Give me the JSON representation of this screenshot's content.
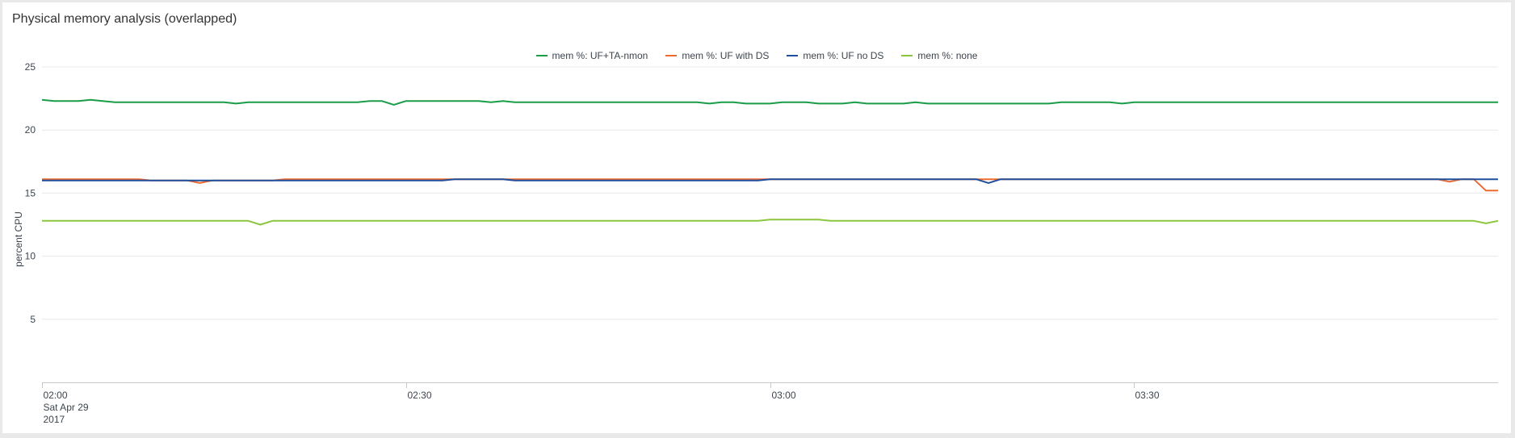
{
  "panel": {
    "title": "Physical memory analysis (overlapped)"
  },
  "legend": [
    {
      "label": "mem %: UF+TA-nmon",
      "color": "#1a9c48"
    },
    {
      "label": "mem %: UF with DS",
      "color": "#ec6a2f"
    },
    {
      "label": "mem %: UF no DS",
      "color": "#1f4e9c"
    },
    {
      "label": "mem %: none",
      "color": "#8cc63f"
    }
  ],
  "chart_data": {
    "type": "line",
    "title": "Physical memory analysis (overlapped)",
    "xlabel": "",
    "ylabel": "percent CPU",
    "ylim": [
      0,
      25
    ],
    "yticks": [
      "5",
      "10",
      "15",
      "20",
      "25"
    ],
    "xticks": [
      {
        "label": "02:00",
        "sublabel": [
          "Sat Apr 29",
          "2017"
        ]
      },
      {
        "label": "02:30",
        "sublabel": []
      },
      {
        "label": "03:00",
        "sublabel": []
      },
      {
        "label": "03:30",
        "sublabel": []
      }
    ],
    "x": [
      "02:00",
      "02:01",
      "02:02",
      "02:03",
      "02:04",
      "02:05",
      "02:06",
      "02:07",
      "02:08",
      "02:09",
      "02:10",
      "02:11",
      "02:12",
      "02:13",
      "02:14",
      "02:15",
      "02:16",
      "02:17",
      "02:18",
      "02:19",
      "02:20",
      "02:21",
      "02:22",
      "02:23",
      "02:24",
      "02:25",
      "02:26",
      "02:27",
      "02:28",
      "02:29",
      "02:30",
      "02:31",
      "02:32",
      "02:33",
      "02:34",
      "02:35",
      "02:36",
      "02:37",
      "02:38",
      "02:39",
      "02:40",
      "02:41",
      "02:42",
      "02:43",
      "02:44",
      "02:45",
      "02:46",
      "02:47",
      "02:48",
      "02:49",
      "02:50",
      "02:51",
      "02:52",
      "02:53",
      "02:54",
      "02:55",
      "02:56",
      "02:57",
      "02:58",
      "02:59",
      "03:00",
      "03:01",
      "03:02",
      "03:03",
      "03:04",
      "03:05",
      "03:06",
      "03:07",
      "03:08",
      "03:09",
      "03:10",
      "03:11",
      "03:12",
      "03:13",
      "03:14",
      "03:15",
      "03:16",
      "03:17",
      "03:18",
      "03:19",
      "03:20",
      "03:21",
      "03:22",
      "03:23",
      "03:24",
      "03:25",
      "03:26",
      "03:27",
      "03:28",
      "03:29",
      "03:30",
      "03:31",
      "03:32",
      "03:33",
      "03:34",
      "03:35",
      "03:36",
      "03:37",
      "03:38",
      "03:39",
      "03:40",
      "03:41",
      "03:42",
      "03:43",
      "03:44",
      "03:45",
      "03:46",
      "03:47",
      "03:48",
      "03:49",
      "03:50",
      "03:51",
      "03:52",
      "03:53",
      "03:54",
      "03:55",
      "03:56",
      "03:57",
      "03:58",
      "03:59",
      "04:00"
    ],
    "series": [
      {
        "name": "mem %: UF+TA-nmon",
        "color": "#1a9c48",
        "values": [
          22.4,
          22.3,
          22.3,
          22.3,
          22.4,
          22.3,
          22.2,
          22.2,
          22.2,
          22.2,
          22.2,
          22.2,
          22.2,
          22.2,
          22.2,
          22.2,
          22.1,
          22.2,
          22.2,
          22.2,
          22.2,
          22.2,
          22.2,
          22.2,
          22.2,
          22.2,
          22.2,
          22.3,
          22.3,
          22.0,
          22.3,
          22.3,
          22.3,
          22.3,
          22.3,
          22.3,
          22.3,
          22.2,
          22.3,
          22.2,
          22.2,
          22.2,
          22.2,
          22.2,
          22.2,
          22.2,
          22.2,
          22.2,
          22.2,
          22.2,
          22.2,
          22.2,
          22.2,
          22.2,
          22.2,
          22.1,
          22.2,
          22.2,
          22.1,
          22.1,
          22.1,
          22.2,
          22.2,
          22.2,
          22.1,
          22.1,
          22.1,
          22.2,
          22.1,
          22.1,
          22.1,
          22.1,
          22.2,
          22.1,
          22.1,
          22.1,
          22.1,
          22.1,
          22.1,
          22.1,
          22.1,
          22.1,
          22.1,
          22.1,
          22.2,
          22.2,
          22.2,
          22.2,
          22.2,
          22.1,
          22.2,
          22.2,
          22.2,
          22.2,
          22.2,
          22.2,
          22.2,
          22.2,
          22.2,
          22.2,
          22.2,
          22.2,
          22.2,
          22.2,
          22.2,
          22.2,
          22.2,
          22.2,
          22.2,
          22.2,
          22.2,
          22.2,
          22.2,
          22.2,
          22.2,
          22.2,
          22.2,
          22.2,
          22.2,
          22.2,
          22.2
        ]
      },
      {
        "name": "mem %: UF with DS",
        "color": "#ec6a2f",
        "values": [
          16.1,
          16.1,
          16.1,
          16.1,
          16.1,
          16.1,
          16.1,
          16.1,
          16.1,
          16.0,
          16.0,
          16.0,
          16.0,
          15.8,
          16.0,
          16.0,
          16.0,
          16.0,
          16.0,
          16.0,
          16.1,
          16.1,
          16.1,
          16.1,
          16.1,
          16.1,
          16.1,
          16.1,
          16.1,
          16.1,
          16.1,
          16.1,
          16.1,
          16.1,
          16.1,
          16.1,
          16.1,
          16.1,
          16.1,
          16.1,
          16.1,
          16.1,
          16.1,
          16.1,
          16.1,
          16.1,
          16.1,
          16.1,
          16.1,
          16.1,
          16.1,
          16.1,
          16.1,
          16.1,
          16.1,
          16.1,
          16.1,
          16.1,
          16.1,
          16.1,
          16.1,
          16.1,
          16.1,
          16.1,
          16.1,
          16.1,
          16.1,
          16.1,
          16.1,
          16.1,
          16.1,
          16.1,
          16.1,
          16.1,
          16.1,
          16.1,
          16.1,
          16.1,
          16.1,
          16.1,
          16.1,
          16.1,
          16.1,
          16.1,
          16.1,
          16.1,
          16.1,
          16.1,
          16.1,
          16.1,
          16.1,
          16.1,
          16.1,
          16.1,
          16.1,
          16.1,
          16.1,
          16.1,
          16.1,
          16.1,
          16.1,
          16.1,
          16.1,
          16.1,
          16.1,
          16.1,
          16.1,
          16.1,
          16.1,
          16.1,
          16.1,
          16.1,
          16.1,
          16.1,
          16.1,
          16.1,
          15.9,
          16.1,
          16.1,
          15.2,
          15.2
        ]
      },
      {
        "name": "mem %: UF no DS",
        "color": "#1f4e9c",
        "values": [
          16.0,
          16.0,
          16.0,
          16.0,
          16.0,
          16.0,
          16.0,
          16.0,
          16.0,
          16.0,
          16.0,
          16.0,
          16.0,
          16.0,
          16.0,
          16.0,
          16.0,
          16.0,
          16.0,
          16.0,
          16.0,
          16.0,
          16.0,
          16.0,
          16.0,
          16.0,
          16.0,
          16.0,
          16.0,
          16.0,
          16.0,
          16.0,
          16.0,
          16.0,
          16.1,
          16.1,
          16.1,
          16.1,
          16.1,
          16.0,
          16.0,
          16.0,
          16.0,
          16.0,
          16.0,
          16.0,
          16.0,
          16.0,
          16.0,
          16.0,
          16.0,
          16.0,
          16.0,
          16.0,
          16.0,
          16.0,
          16.0,
          16.0,
          16.0,
          16.0,
          16.1,
          16.1,
          16.1,
          16.1,
          16.1,
          16.1,
          16.1,
          16.1,
          16.1,
          16.1,
          16.1,
          16.1,
          16.1,
          16.1,
          16.1,
          16.1,
          16.1,
          16.1,
          15.8,
          16.1,
          16.1,
          16.1,
          16.1,
          16.1,
          16.1,
          16.1,
          16.1,
          16.1,
          16.1,
          16.1,
          16.1,
          16.1,
          16.1,
          16.1,
          16.1,
          16.1,
          16.1,
          16.1,
          16.1,
          16.1,
          16.1,
          16.1,
          16.1,
          16.1,
          16.1,
          16.1,
          16.1,
          16.1,
          16.1,
          16.1,
          16.1,
          16.1,
          16.1,
          16.1,
          16.1,
          16.1,
          16.1,
          16.1,
          16.1,
          16.1,
          16.1
        ]
      },
      {
        "name": "mem %: none",
        "color": "#8cc63f",
        "values": [
          12.8,
          12.8,
          12.8,
          12.8,
          12.8,
          12.8,
          12.8,
          12.8,
          12.8,
          12.8,
          12.8,
          12.8,
          12.8,
          12.8,
          12.8,
          12.8,
          12.8,
          12.8,
          12.5,
          12.8,
          12.8,
          12.8,
          12.8,
          12.8,
          12.8,
          12.8,
          12.8,
          12.8,
          12.8,
          12.8,
          12.8,
          12.8,
          12.8,
          12.8,
          12.8,
          12.8,
          12.8,
          12.8,
          12.8,
          12.8,
          12.8,
          12.8,
          12.8,
          12.8,
          12.8,
          12.8,
          12.8,
          12.8,
          12.8,
          12.8,
          12.8,
          12.8,
          12.8,
          12.8,
          12.8,
          12.8,
          12.8,
          12.8,
          12.8,
          12.8,
          12.9,
          12.9,
          12.9,
          12.9,
          12.9,
          12.8,
          12.8,
          12.8,
          12.8,
          12.8,
          12.8,
          12.8,
          12.8,
          12.8,
          12.8,
          12.8,
          12.8,
          12.8,
          12.8,
          12.8,
          12.8,
          12.8,
          12.8,
          12.8,
          12.8,
          12.8,
          12.8,
          12.8,
          12.8,
          12.8,
          12.8,
          12.8,
          12.8,
          12.8,
          12.8,
          12.8,
          12.8,
          12.8,
          12.8,
          12.8,
          12.8,
          12.8,
          12.8,
          12.8,
          12.8,
          12.8,
          12.8,
          12.8,
          12.8,
          12.8,
          12.8,
          12.8,
          12.8,
          12.8,
          12.8,
          12.8,
          12.8,
          12.8,
          12.8,
          12.6,
          12.8
        ]
      }
    ]
  }
}
